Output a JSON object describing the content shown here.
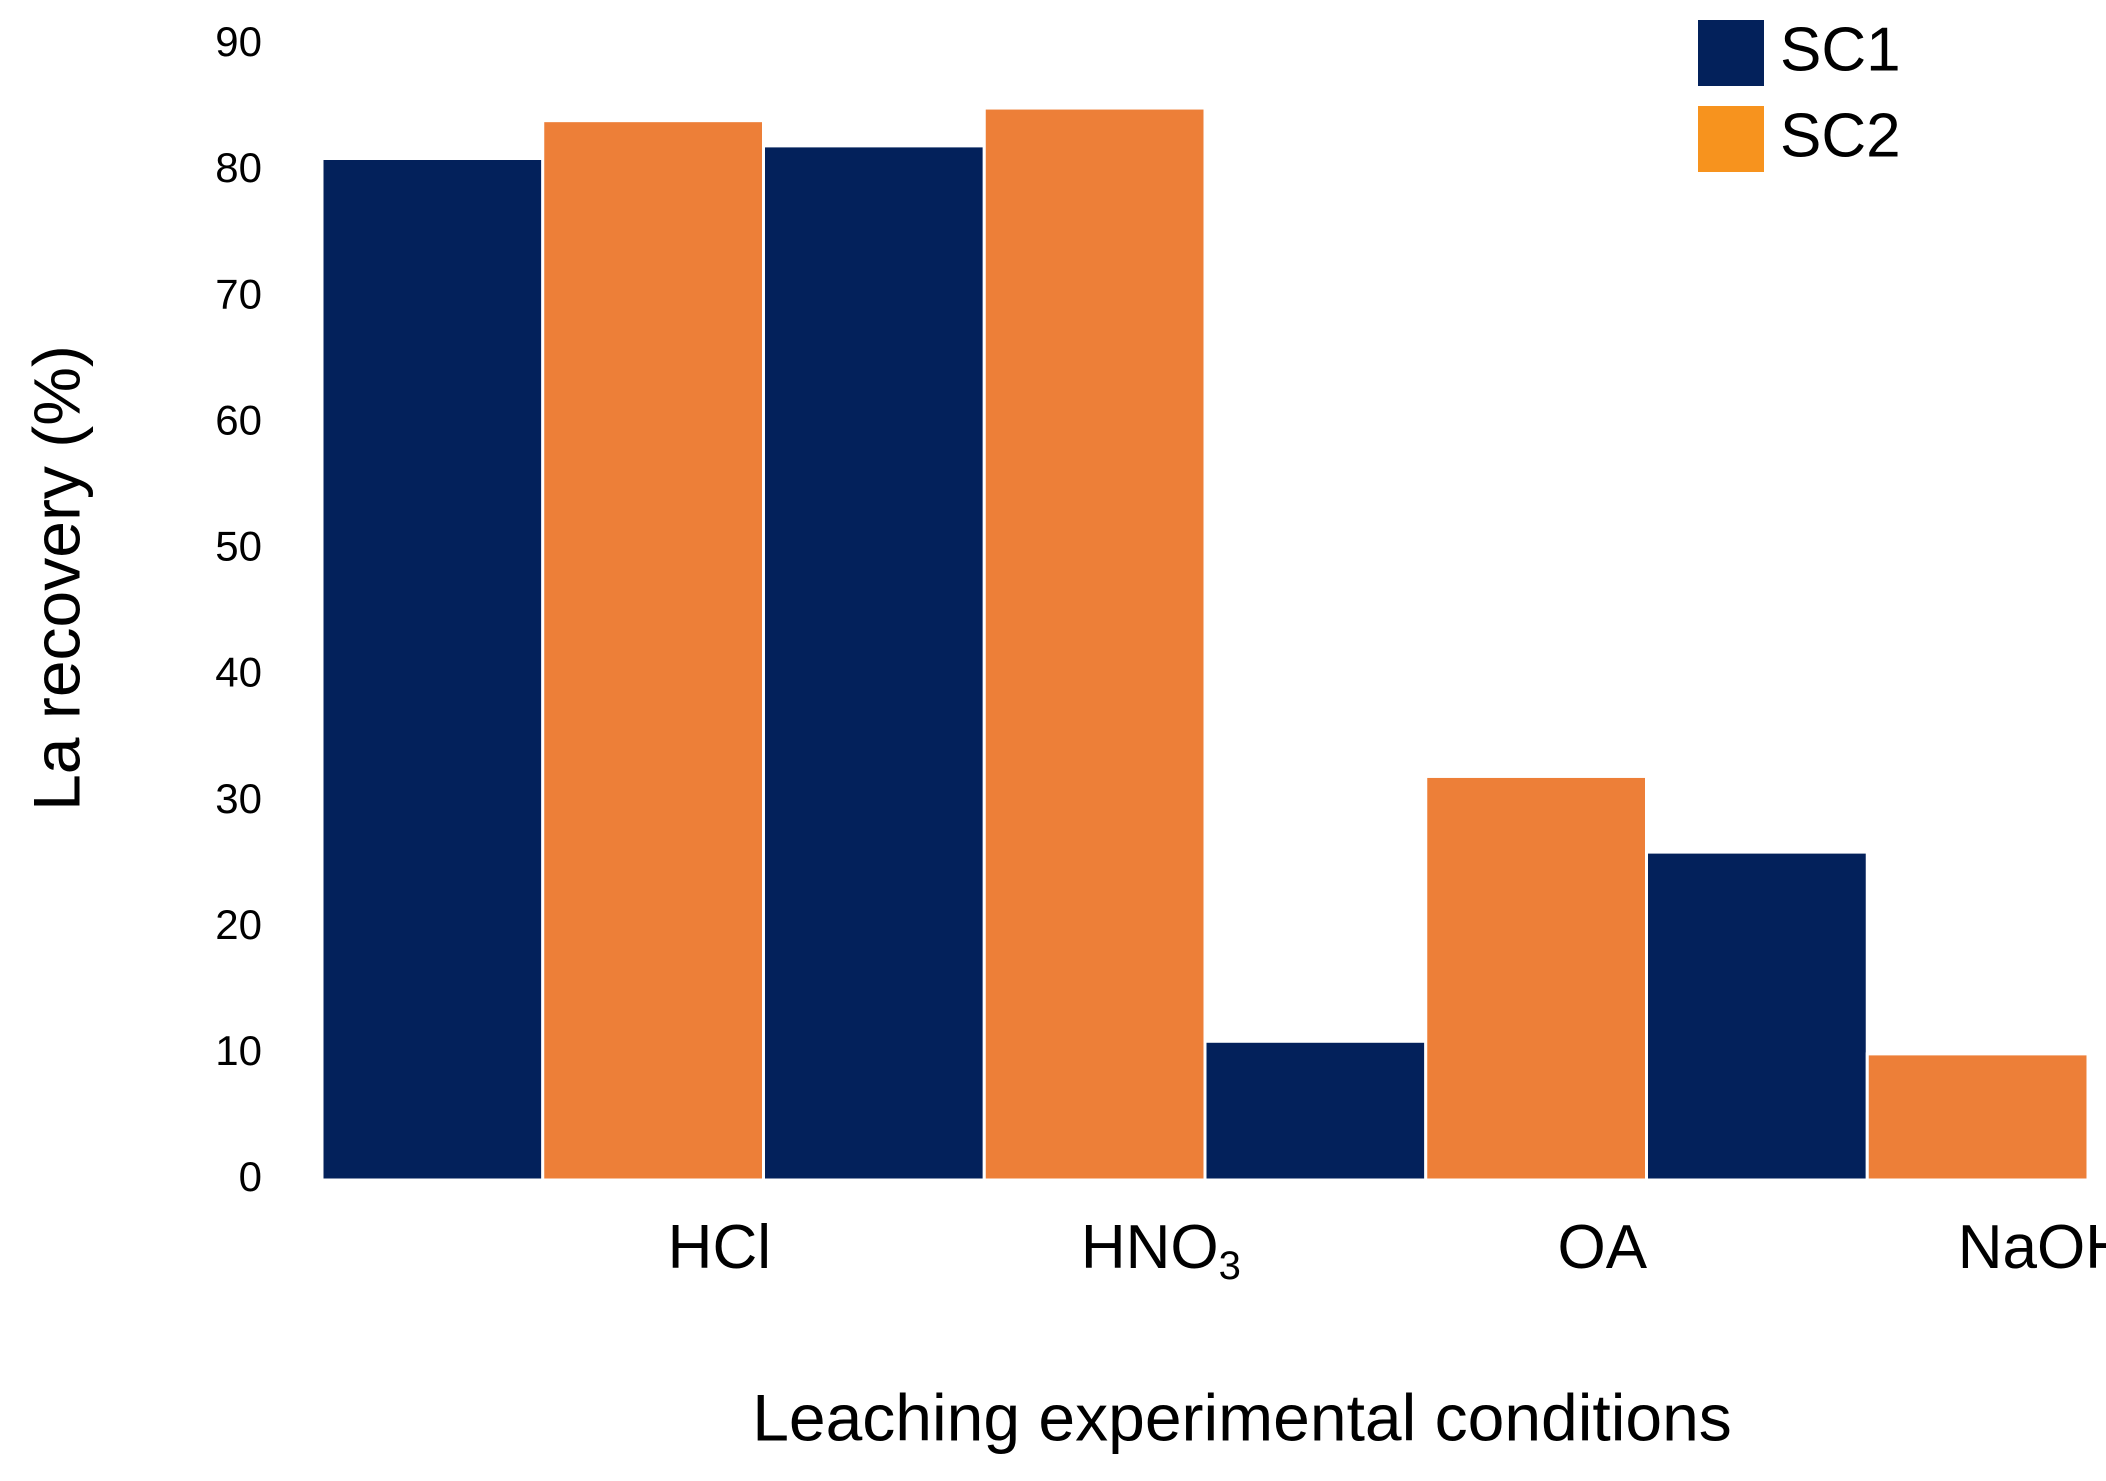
{
  "chart_data": {
    "type": "bar",
    "title": "",
    "xlabel": "Leaching experimental conditions",
    "ylabel": "La recovery (%)",
    "ylim": [
      0,
      90
    ],
    "yticks": [
      0,
      10,
      20,
      30,
      40,
      50,
      60,
      70,
      80,
      90
    ],
    "grid": false,
    "legend_position": "top-right",
    "categories": [
      {
        "label": "HCl",
        "subscript": ""
      },
      {
        "label": "HNO",
        "subscript": "3"
      },
      {
        "label": "OA",
        "subscript": ""
      },
      {
        "label": "NaOH",
        "subscript": ""
      }
    ],
    "series": [
      {
        "name": "SC1",
        "color": "#03215B",
        "values": [
          81,
          82,
          11,
          26
        ]
      },
      {
        "name": "SC2",
        "color": "#ED7F38",
        "values": [
          84,
          85,
          32,
          10
        ]
      }
    ],
    "legend": [
      {
        "name": "SC1",
        "color": "#03215B"
      },
      {
        "name": "SC2",
        "color": "#F7931E"
      }
    ]
  }
}
